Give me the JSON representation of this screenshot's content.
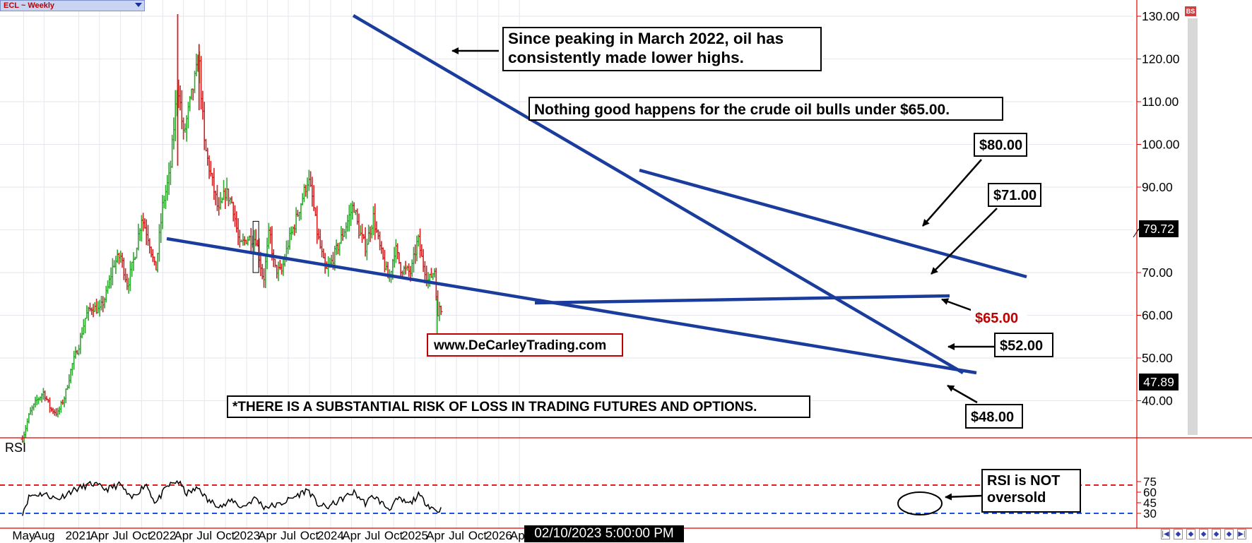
{
  "header": {
    "symbol_label": "ECL ~ Weekly",
    "bs_label": "BS"
  },
  "indicator_label": "RSI",
  "date_tooltip": "02/10/2023 5:00:00 PM",
  "annotations": {
    "lower_highs": "Since peaking in March 2022, oil has consistently made lower highs.",
    "nothing_good": "Nothing good happens for the crude oil bulls under $65.00.",
    "website": "www.DeCarleyTrading.com",
    "disclaimer": "*THERE IS A SUBSTANTIAL RISK OF LOSS IN TRADING FUTURES AND OPTIONS.",
    "level_80": "$80.00",
    "level_71": "$71.00",
    "level_65": "$65.00",
    "level_52": "$52.00",
    "level_48": "$48.00",
    "rsi_note_line1": "RSI is NOT",
    "rsi_note_line2": "oversold"
  },
  "nav_buttons": [
    "|◀",
    "◆",
    "◆",
    "◆",
    "◆",
    "◆",
    "▶|"
  ],
  "colors": {
    "up_bar": "#2ea82e",
    "down_bar": "#d42020",
    "trendline": "#1a3c9c",
    "rsi_overbought": "#e02020",
    "rsi_oversold": "#2050e0",
    "axis_red": "#e00000"
  },
  "chart_data": {
    "type": "ohlc",
    "title": "ECL ~ Weekly",
    "price_axis": {
      "ticks": [
        "130.00",
        "120.00",
        "110.00",
        "100.00",
        "90.00",
        "80.00",
        "70.00",
        "60.00",
        "50.00",
        "40.00"
      ],
      "ylim": [
        32,
        133
      ]
    },
    "last_price_label": "79.72",
    "bottom_price_label": "47.89",
    "rsi_axis": {
      "ticks": [
        "75",
        "60",
        "45",
        "30"
      ],
      "overbought": 70,
      "oversold": 30
    },
    "x_ticks": [
      "May",
      "Aug",
      "2021",
      "Apr",
      "Jul",
      "Oct",
      "2022",
      "Apr",
      "Jul",
      "Oct",
      "2023",
      "Apr",
      "Jul",
      "Oct",
      "2024",
      "Apr",
      "Jul",
      "Oct",
      "2025",
      "Apr",
      "Jul",
      "Oct",
      "2026",
      "Apr"
    ],
    "price_anchors": [
      [
        "2020-05-01",
        31
      ],
      [
        "2020-06-01",
        37
      ],
      [
        "2020-07-01",
        40
      ],
      [
        "2020-08-01",
        42
      ],
      [
        "2020-09-01",
        38
      ],
      [
        "2020-10-01",
        37
      ],
      [
        "2020-11-01",
        41
      ],
      [
        "2020-12-01",
        48
      ],
      [
        "2021-01-01",
        53
      ],
      [
        "2021-02-01",
        60
      ],
      [
        "2021-03-01",
        62
      ],
      [
        "2021-04-01",
        61
      ],
      [
        "2021-05-01",
        65
      ],
      [
        "2021-06-01",
        72
      ],
      [
        "2021-07-01",
        74
      ],
      [
        "2021-08-01",
        67
      ],
      [
        "2021-09-01",
        74
      ],
      [
        "2021-10-01",
        83
      ],
      [
        "2021-11-01",
        78
      ],
      [
        "2021-12-01",
        70
      ],
      [
        "2022-01-01",
        86
      ],
      [
        "2022-02-01",
        93
      ],
      [
        "2022-03-07",
        115
      ],
      [
        "2022-04-01",
        102
      ],
      [
        "2022-05-01",
        110
      ],
      [
        "2022-06-08",
        120
      ],
      [
        "2022-07-01",
        100
      ],
      [
        "2022-08-01",
        92
      ],
      [
        "2022-09-01",
        84
      ],
      [
        "2022-10-01",
        89
      ],
      [
        "2022-11-01",
        86
      ],
      [
        "2022-12-01",
        76
      ],
      [
        "2023-01-01",
        78
      ],
      [
        "2023-02-10",
        78
      ],
      [
        "2023-03-15",
        68
      ],
      [
        "2023-04-10",
        80
      ],
      [
        "2023-05-01",
        71
      ],
      [
        "2023-06-01",
        70
      ],
      [
        "2023-07-01",
        77
      ],
      [
        "2023-08-01",
        82
      ],
      [
        "2023-09-25",
        92
      ],
      [
        "2023-10-15",
        87
      ],
      [
        "2023-11-01",
        80
      ],
      [
        "2023-12-10",
        70
      ],
      [
        "2024-01-01",
        72
      ],
      [
        "2024-02-01",
        76
      ],
      [
        "2024-03-01",
        80
      ],
      [
        "2024-04-10",
        86
      ],
      [
        "2024-05-01",
        80
      ],
      [
        "2024-06-01",
        76
      ],
      [
        "2024-07-05",
        83
      ],
      [
        "2024-08-01",
        76
      ],
      [
        "2024-09-10",
        68
      ],
      [
        "2024-10-07",
        76
      ],
      [
        "2024-11-01",
        71
      ],
      [
        "2024-12-15",
        70
      ],
      [
        "2025-01-15",
        78
      ],
      [
        "2025-02-01",
        73
      ],
      [
        "2025-03-01",
        68
      ],
      [
        "2025-04-01",
        71
      ],
      [
        "2025-04-08",
        58
      ],
      [
        "2025-04-20",
        63
      ],
      [
        "2025-05-01",
        60
      ]
    ],
    "rsi_anchors": [
      [
        "2020-05-01",
        31
      ],
      [
        "2020-06-01",
        55
      ],
      [
        "2020-08-01",
        58
      ],
      [
        "2020-10-01",
        50
      ],
      [
        "2020-12-01",
        62
      ],
      [
        "2021-03-01",
        72
      ],
      [
        "2021-05-01",
        64
      ],
      [
        "2021-07-01",
        71
      ],
      [
        "2021-08-15",
        50
      ],
      [
        "2021-10-20",
        72
      ],
      [
        "2021-12-01",
        44
      ],
      [
        "2022-01-20",
        68
      ],
      [
        "2022-03-07",
        76
      ],
      [
        "2022-04-15",
        58
      ],
      [
        "2022-06-08",
        66
      ],
      [
        "2022-07-15",
        48
      ],
      [
        "2022-09-20",
        40
      ],
      [
        "2022-11-01",
        49
      ],
      [
        "2022-12-10",
        38
      ],
      [
        "2023-02-10",
        52
      ],
      [
        "2023-03-15",
        39
      ],
      [
        "2023-05-20",
        42
      ],
      [
        "2023-08-01",
        54
      ],
      [
        "2023-09-25",
        64
      ],
      [
        "2023-11-01",
        44
      ],
      [
        "2023-12-15",
        38
      ],
      [
        "2024-02-01",
        47
      ],
      [
        "2024-04-10",
        60
      ],
      [
        "2024-06-01",
        44
      ],
      [
        "2024-07-05",
        55
      ],
      [
        "2024-09-10",
        36
      ],
      [
        "2024-10-20",
        50
      ],
      [
        "2024-12-10",
        43
      ],
      [
        "2025-01-15",
        56
      ],
      [
        "2025-03-01",
        42
      ],
      [
        "2025-04-08",
        33
      ],
      [
        "2025-05-01",
        37
      ]
    ]
  }
}
